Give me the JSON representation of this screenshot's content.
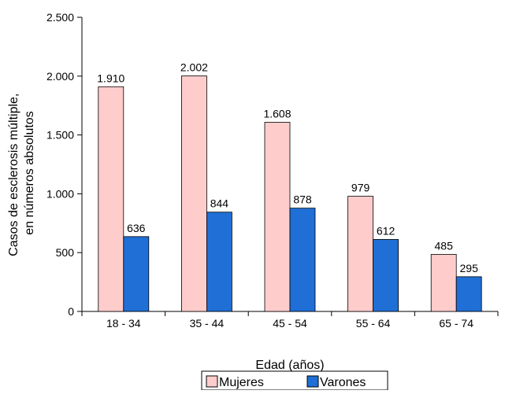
{
  "chart_data": {
    "type": "bar",
    "categories": [
      "18 - 34",
      "35 - 44",
      "45 - 54",
      "55 - 64",
      "65 - 74"
    ],
    "series": [
      {
        "name": "Mujeres",
        "values": [
          1910,
          2002,
          1608,
          979,
          485
        ],
        "labels": [
          "1.910",
          "2.002",
          "1.608",
          "979",
          "485"
        ],
        "color": "#ffcccc"
      },
      {
        "name": "Varones",
        "values": [
          636,
          844,
          878,
          612,
          295
        ],
        "labels": [
          "636",
          "844",
          "878",
          "612",
          "295"
        ],
        "color": "#1f6fd6"
      }
    ],
    "xlabel": "Edad (años)",
    "ylabel": [
      "Casos de esclerosis múltiple,",
      "en números absolutos"
    ],
    "ylim": [
      0,
      2500
    ],
    "yticks": [
      0,
      500,
      1000,
      1500,
      2000,
      2500
    ],
    "ytick_labels": [
      "0",
      "500",
      "1.000",
      "1.500",
      "2.000",
      "2.500"
    ],
    "grid": false,
    "legend_position": "bottom"
  }
}
